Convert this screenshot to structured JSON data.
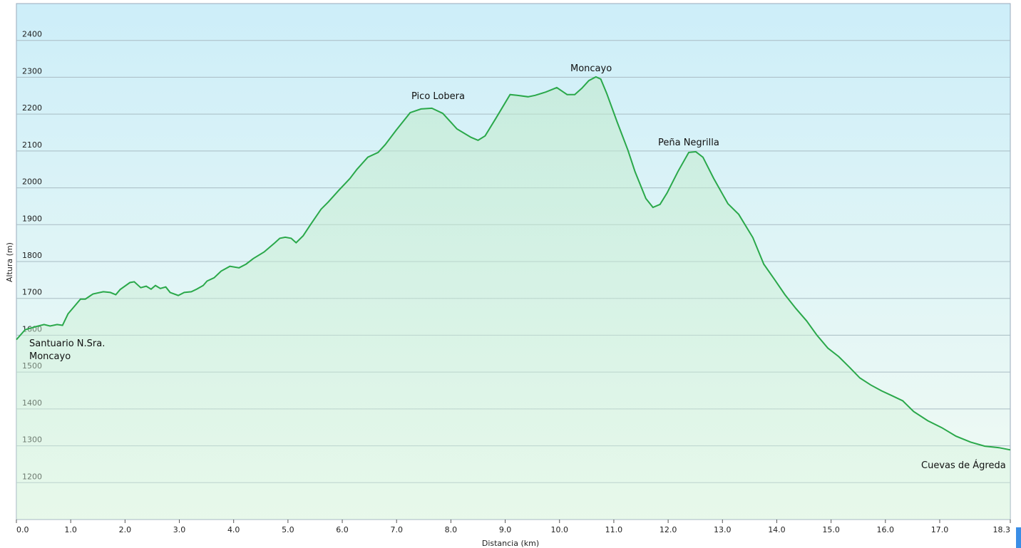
{
  "chart_data": {
    "type": "area",
    "xlabel": "Distancia  (km)",
    "ylabel": "Altura (m)",
    "x": [
      0,
      0.16,
      0.35,
      0.51,
      0.62,
      0.75,
      0.85,
      0.95,
      1.06,
      1.18,
      1.27,
      1.41,
      1.6,
      1.73,
      1.83,
      1.91,
      2.09,
      2.17,
      2.29,
      2.39,
      2.48,
      2.56,
      2.65,
      2.75,
      2.83,
      2.98,
      3.09,
      3.22,
      3.32,
      3.44,
      3.51,
      3.64,
      3.77,
      3.93,
      4.1,
      4.23,
      4.36,
      4.56,
      4.76,
      4.85,
      4.95,
      5.06,
      5.15,
      5.28,
      5.41,
      5.61,
      5.74,
      5.94,
      6.14,
      6.27,
      6.47,
      6.66,
      6.79,
      6.99,
      7.25,
      7.45,
      7.65,
      7.85,
      8.11,
      8.37,
      8.5,
      8.63,
      8.83,
      9.09,
      9.22,
      9.42,
      9.55,
      9.75,
      9.95,
      10.14,
      10.28,
      10.41,
      10.54,
      10.67,
      10.76,
      10.87,
      11.06,
      11.26,
      11.39,
      11.59,
      11.72,
      11.85,
      11.98,
      12.18,
      12.38,
      12.51,
      12.64,
      12.84,
      13.1,
      13.3,
      13.56,
      13.76,
      13.96,
      14.15,
      14.35,
      14.55,
      14.74,
      14.94,
      15.14,
      15.34,
      15.53,
      15.73,
      15.93,
      16.12,
      16.32,
      16.52,
      16.78,
      17.04,
      17.3,
      17.57,
      17.83,
      18.09,
      18.3
    ],
    "series": [
      {
        "name": "Altura",
        "color": "#2aa84a",
        "values": [
          1588,
          1615,
          1623,
          1629,
          1625,
          1629,
          1627,
          1658,
          1677,
          1698,
          1698,
          1712,
          1718,
          1716,
          1710,
          1724,
          1743,
          1745,
          1729,
          1733,
          1725,
          1735,
          1727,
          1731,
          1716,
          1708,
          1716,
          1718,
          1725,
          1735,
          1747,
          1756,
          1774,
          1787,
          1783,
          1793,
          1808,
          1826,
          1851,
          1863,
          1866,
          1863,
          1851,
          1870,
          1899,
          1942,
          1961,
          1994,
          2025,
          2050,
          2083,
          2096,
          2117,
          2156,
          2204,
          2214,
          2216,
          2202,
          2160,
          2137,
          2129,
          2141,
          2189,
          2253,
          2251,
          2247,
          2251,
          2260,
          2272,
          2253,
          2253,
          2270,
          2291,
          2301,
          2295,
          2256,
          2179,
          2102,
          2044,
          1971,
          1947,
          1955,
          1986,
          2044,
          2096,
          2098,
          2083,
          2025,
          1957,
          1928,
          1865,
          1793,
          1751,
          1710,
          1673,
          1639,
          1600,
          1565,
          1542,
          1513,
          1484,
          1465,
          1449,
          1436,
          1422,
          1393,
          1368,
          1349,
          1326,
          1310,
          1299,
          1295,
          1289
        ]
      }
    ],
    "annotations": [
      "Santuario N.Sra. Moncayo",
      "Pico Lobera",
      "Moncayo",
      "Peña Negrilla",
      "Cuevas de Ágreda"
    ],
    "xlim": [
      0,
      18.3
    ],
    "ylim": [
      1100,
      2500
    ],
    "xticks": [
      {
        "value": 0,
        "label": "0.0"
      },
      {
        "value": 1,
        "label": "1.0"
      },
      {
        "value": 2,
        "label": "2.0"
      },
      {
        "value": 3,
        "label": "3.0"
      },
      {
        "value": 4,
        "label": "4.0"
      },
      {
        "value": 5,
        "label": "5.0"
      },
      {
        "value": 6,
        "label": "6.0"
      },
      {
        "value": 7,
        "label": "7.0"
      },
      {
        "value": 8,
        "label": "8.0"
      },
      {
        "value": 9,
        "label": "9.0"
      },
      {
        "value": 10,
        "label": "10.0"
      },
      {
        "value": 11,
        "label": "11.0"
      },
      {
        "value": 12,
        "label": "12.0"
      },
      {
        "value": 13,
        "label": "13.0"
      },
      {
        "value": 14,
        "label": "14.0"
      },
      {
        "value": 15,
        "label": "15.0"
      },
      {
        "value": 16,
        "label": "16.0"
      },
      {
        "value": 17,
        "label": "17.0"
      },
      18.3
    ],
    "yticks": [
      1200,
      1300,
      1400,
      1500,
      1600,
      1700,
      1800,
      1900,
      2000,
      2100,
      2200,
      2300,
      2400
    ],
    "grid": true
  }
}
